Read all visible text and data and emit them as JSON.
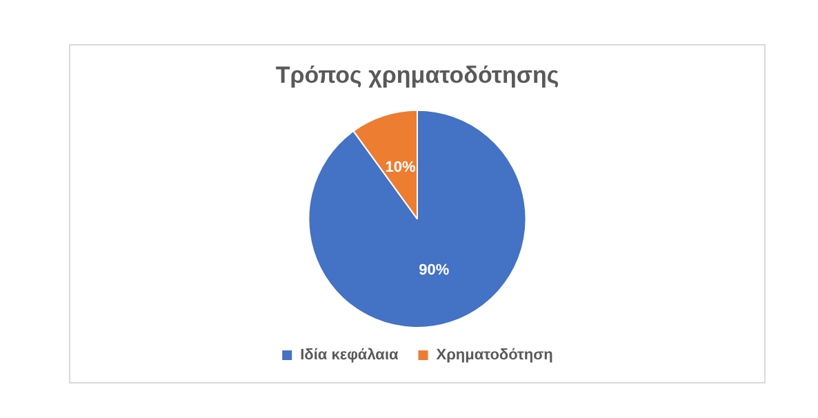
{
  "chart_data": {
    "type": "pie",
    "title": "Τρόπος χρηματοδότησης",
    "categories": [
      "Ιδία κεφάλαια",
      "Χρηματοδότηση"
    ],
    "values": [
      90,
      10
    ],
    "colors": [
      "#4472c4",
      "#ed7d31"
    ],
    "value_labels": [
      "90%",
      "10%"
    ],
    "legend": "bottom"
  }
}
